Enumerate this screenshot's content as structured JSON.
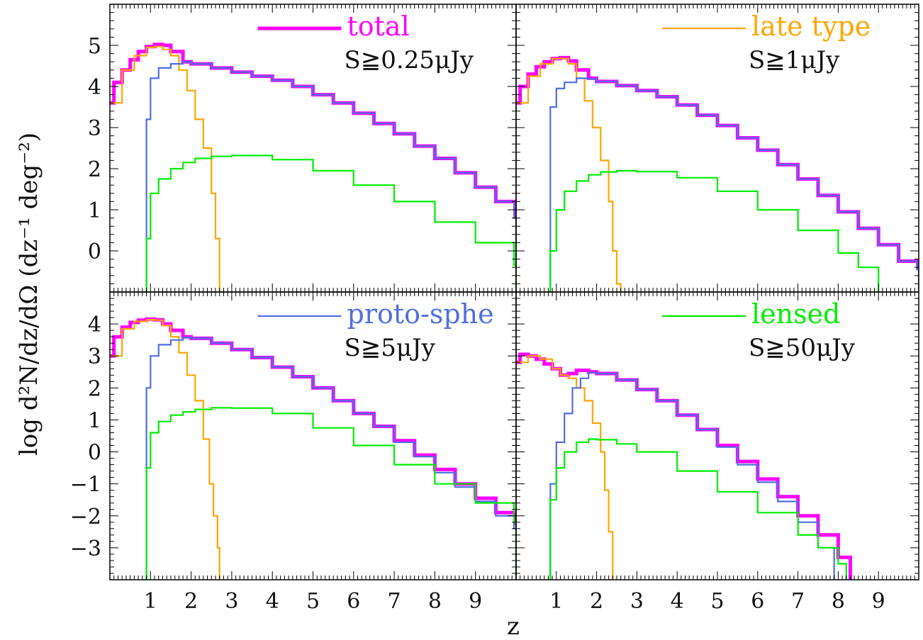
{
  "figure": {
    "ylabel": "log d²N/dz/dΩ (dz⁻¹ deg⁻²)",
    "xlabel": "z"
  },
  "colors": {
    "total": "#ff00ff",
    "late": "#ffa500",
    "proto": "#4f6fe0",
    "lensed": "#00ee00"
  },
  "chart_data": [
    {
      "type": "line",
      "panel": "top-left",
      "legend_label": "total",
      "legend_key": "total",
      "flux_cut": "S≧0.25μJy",
      "xlim": [
        0,
        10
      ],
      "ylim": [
        -1,
        6
      ],
      "yticks": [
        0,
        1,
        2,
        3,
        4,
        5
      ],
      "xticks": [
        1,
        2,
        3,
        4,
        5,
        6,
        7,
        8,
        9
      ],
      "series": [
        {
          "key": "total",
          "x": [
            0,
            0.1,
            0.3,
            0.5,
            0.7,
            0.9,
            1.1,
            1.3,
            1.5,
            1.8,
            2.0,
            2.5,
            3.0,
            3.5,
            4.0,
            4.5,
            5.0,
            5.5,
            6.0,
            6.5,
            7.0,
            7.5,
            8.0,
            8.5,
            9.0,
            9.5,
            10.0
          ],
          "y": [
            3.6,
            4.1,
            4.4,
            4.65,
            4.85,
            4.97,
            5.02,
            5.0,
            4.85,
            4.6,
            4.55,
            4.45,
            4.35,
            4.25,
            4.15,
            4.0,
            3.8,
            3.6,
            3.35,
            3.1,
            2.85,
            2.55,
            2.25,
            1.9,
            1.55,
            1.2,
            0.8
          ]
        },
        {
          "key": "late",
          "x": [
            0,
            0.3,
            0.6,
            0.9,
            1.1,
            1.3,
            1.5,
            1.7,
            1.9,
            2.1,
            2.3,
            2.5,
            2.6,
            2.7
          ],
          "y": [
            3.6,
            4.4,
            4.75,
            4.95,
            4.97,
            4.9,
            4.75,
            4.4,
            3.9,
            3.2,
            2.5,
            1.4,
            0.3,
            -1.0
          ]
        },
        {
          "key": "proto",
          "x": [
            0.85,
            0.9,
            1.0,
            1.2,
            1.5,
            1.8,
            2.0,
            2.5,
            3.0,
            3.5,
            4.0,
            4.5,
            5.0,
            5.5,
            6.0,
            6.5,
            7.0,
            7.5,
            8.0,
            8.5,
            9.0,
            9.5,
            9.95,
            10.0
          ],
          "y": [
            -1.0,
            3.2,
            4.2,
            4.45,
            4.55,
            4.6,
            4.55,
            4.45,
            4.35,
            4.25,
            4.15,
            4.0,
            3.8,
            3.6,
            3.35,
            3.1,
            2.85,
            2.55,
            2.25,
            1.9,
            1.55,
            1.2,
            0.8,
            -1.0
          ]
        },
        {
          "key": "lensed",
          "x": [
            0.85,
            0.9,
            1.0,
            1.2,
            1.5,
            1.8,
            2.1,
            2.5,
            3.0,
            4.0,
            5.0,
            6.0,
            7.0,
            8.0,
            9.0,
            9.95,
            10.0
          ],
          "y": [
            -1.0,
            0.3,
            1.4,
            1.75,
            2.0,
            2.15,
            2.25,
            2.3,
            2.32,
            2.22,
            1.95,
            1.6,
            1.2,
            0.7,
            0.2,
            -0.35,
            -1.0
          ]
        }
      ]
    },
    {
      "type": "line",
      "panel": "top-right",
      "legend_label": "late type",
      "legend_key": "late",
      "flux_cut": "S≧1μJy",
      "xlim": [
        0,
        10
      ],
      "ylim": [
        -1,
        6
      ],
      "yticks": [
        0,
        1,
        2,
        3,
        4,
        5
      ],
      "xticks": [
        1,
        2,
        3,
        4,
        5,
        6,
        7,
        8,
        9
      ],
      "series": [
        {
          "key": "total",
          "x": [
            0,
            0.1,
            0.3,
            0.5,
            0.7,
            0.9,
            1.1,
            1.3,
            1.5,
            1.8,
            2.0,
            2.5,
            3.0,
            3.5,
            4.0,
            4.5,
            5.0,
            5.5,
            6.0,
            6.5,
            7.0,
            7.5,
            8.0,
            8.5,
            9.0,
            9.5,
            10.0
          ],
          "y": [
            3.6,
            4.0,
            4.3,
            4.48,
            4.6,
            4.68,
            4.7,
            4.62,
            4.4,
            4.2,
            4.12,
            4.02,
            3.9,
            3.75,
            3.55,
            3.3,
            3.05,
            2.75,
            2.45,
            2.1,
            1.75,
            1.35,
            0.95,
            0.55,
            0.15,
            -0.25,
            -0.45
          ]
        },
        {
          "key": "late",
          "x": [
            0,
            0.3,
            0.6,
            0.9,
            1.1,
            1.3,
            1.5,
            1.7,
            1.9,
            2.1,
            2.3,
            2.4,
            2.5,
            2.6
          ],
          "y": [
            3.6,
            4.25,
            4.55,
            4.68,
            4.68,
            4.55,
            4.2,
            3.65,
            3.0,
            2.2,
            1.2,
            0.0,
            -0.8,
            -1.0
          ]
        },
        {
          "key": "proto",
          "x": [
            0.8,
            0.85,
            1.0,
            1.2,
            1.5,
            1.8,
            2.0,
            2.5,
            3.0,
            3.5,
            4.0,
            4.5,
            5.0,
            5.5,
            6.0,
            6.5,
            7.0,
            7.5,
            8.0,
            8.5,
            9.0,
            9.5,
            9.95,
            10.0
          ],
          "y": [
            -1.0,
            3.5,
            3.95,
            4.1,
            4.2,
            4.18,
            4.12,
            4.02,
            3.9,
            3.75,
            3.55,
            3.3,
            3.05,
            2.75,
            2.45,
            2.1,
            1.75,
            1.35,
            0.95,
            0.55,
            0.15,
            -0.25,
            -0.45,
            -1.0
          ]
        },
        {
          "key": "lensed",
          "x": [
            0.8,
            0.85,
            1.0,
            1.2,
            1.5,
            1.8,
            2.1,
            2.5,
            3.0,
            4.0,
            5.0,
            6.0,
            7.0,
            8.0,
            8.5,
            9.0
          ],
          "y": [
            -1.0,
            0.0,
            1.0,
            1.45,
            1.7,
            1.85,
            1.92,
            1.95,
            1.93,
            1.78,
            1.45,
            1.0,
            0.5,
            -0.05,
            -0.4,
            -1.0
          ]
        }
      ]
    },
    {
      "type": "line",
      "panel": "bottom-left",
      "legend_label": "proto-sphe",
      "legend_key": "proto",
      "flux_cut": "S≧5μJy",
      "xlim": [
        0,
        10
      ],
      "ylim": [
        -4,
        5
      ],
      "yticks": [
        -3,
        -2,
        -1,
        0,
        1,
        2,
        3,
        4
      ],
      "xticks": [
        1,
        2,
        3,
        4,
        5,
        6,
        7,
        8,
        9
      ],
      "series": [
        {
          "key": "total",
          "x": [
            0,
            0.1,
            0.3,
            0.5,
            0.7,
            0.9,
            1.1,
            1.3,
            1.5,
            1.8,
            2.0,
            2.5,
            3.0,
            3.5,
            4.0,
            4.5,
            5.0,
            5.5,
            6.0,
            6.5,
            7.0,
            7.5,
            8.0,
            8.5,
            9.0,
            9.5,
            10.0
          ],
          "y": [
            3.0,
            3.6,
            3.9,
            4.05,
            4.12,
            4.15,
            4.13,
            4.0,
            3.8,
            3.6,
            3.55,
            3.4,
            3.2,
            2.95,
            2.65,
            2.35,
            2.0,
            1.6,
            1.2,
            0.8,
            0.35,
            -0.1,
            -0.55,
            -1.0,
            -1.45,
            -1.9,
            -2.3
          ]
        },
        {
          "key": "late",
          "x": [
            0,
            0.3,
            0.6,
            0.9,
            1.1,
            1.3,
            1.5,
            1.7,
            1.9,
            2.1,
            2.3,
            2.45,
            2.55,
            2.65,
            2.7
          ],
          "y": [
            3.0,
            3.85,
            4.08,
            4.13,
            4.12,
            3.95,
            3.6,
            3.1,
            2.4,
            1.6,
            0.4,
            -1.0,
            -2.0,
            -3.0,
            -4.0
          ]
        },
        {
          "key": "proto",
          "x": [
            0.85,
            0.9,
            1.0,
            1.2,
            1.5,
            1.8,
            2.0,
            2.5,
            3.0,
            3.5,
            4.0,
            4.5,
            5.0,
            5.5,
            6.0,
            6.5,
            7.0,
            7.5,
            8.0,
            8.5,
            9.0,
            9.5,
            9.95,
            10.0
          ],
          "y": [
            -4.0,
            2.0,
            3.0,
            3.35,
            3.5,
            3.58,
            3.55,
            3.4,
            3.2,
            2.95,
            2.65,
            2.35,
            2.0,
            1.6,
            1.2,
            0.8,
            0.3,
            -0.15,
            -0.65,
            -1.1,
            -1.55,
            -2.0,
            -2.4,
            -4.0
          ]
        },
        {
          "key": "lensed",
          "x": [
            0.85,
            0.9,
            1.0,
            1.2,
            1.5,
            1.8,
            2.1,
            2.5,
            3.0,
            4.0,
            5.0,
            6.0,
            7.0,
            8.0,
            9.0,
            9.95,
            10.0
          ],
          "y": [
            -4.0,
            -0.5,
            0.6,
            0.95,
            1.15,
            1.25,
            1.33,
            1.38,
            1.37,
            1.2,
            0.75,
            0.2,
            -0.4,
            -1.0,
            -1.6,
            -2.2,
            -4.0
          ]
        }
      ]
    },
    {
      "type": "line",
      "panel": "bottom-right",
      "legend_label": "lensed",
      "legend_key": "lensed",
      "flux_cut": "S≧50μJy",
      "xlim": [
        0,
        10
      ],
      "ylim": [
        -4,
        5
      ],
      "yticks": [
        -3,
        -2,
        -1,
        0,
        1,
        2,
        3,
        4
      ],
      "xticks": [
        1,
        2,
        3,
        4,
        5,
        6,
        7,
        8,
        9
      ],
      "series": [
        {
          "key": "total",
          "x": [
            0,
            0.1,
            0.3,
            0.5,
            0.7,
            0.9,
            1.1,
            1.3,
            1.5,
            1.8,
            2.0,
            2.5,
            3.0,
            3.5,
            4.0,
            4.5,
            5.0,
            5.5,
            6.0,
            6.5,
            7.0,
            7.5,
            8.0,
            8.3
          ],
          "y": [
            2.8,
            3.05,
            3.0,
            2.9,
            2.75,
            2.6,
            2.4,
            2.45,
            2.55,
            2.5,
            2.45,
            2.25,
            1.95,
            1.6,
            1.15,
            0.7,
            0.2,
            -0.3,
            -0.85,
            -1.4,
            -2.0,
            -2.6,
            -3.3,
            -4.0
          ]
        },
        {
          "key": "late",
          "x": [
            0,
            0.3,
            0.6,
            0.9,
            1.1,
            1.3,
            1.5,
            1.7,
            1.9,
            2.1,
            2.2,
            2.3,
            2.4
          ],
          "y": [
            2.8,
            3.0,
            2.9,
            2.6,
            2.4,
            2.3,
            2.0,
            1.6,
            0.9,
            0.0,
            -1.2,
            -2.5,
            -4.0
          ]
        },
        {
          "key": "proto",
          "x": [
            0.8,
            0.85,
            1.0,
            1.2,
            1.4,
            1.6,
            1.8,
            2.0,
            2.5,
            3.0,
            3.5,
            4.0,
            4.5,
            5.0,
            5.5,
            6.0,
            6.5,
            7.0,
            7.5,
            7.9
          ],
          "y": [
            -4.0,
            -1.0,
            0.3,
            1.2,
            2.0,
            2.3,
            2.48,
            2.45,
            2.25,
            1.95,
            1.6,
            1.15,
            0.7,
            0.15,
            -0.4,
            -0.95,
            -1.55,
            -2.2,
            -3.0,
            -4.0
          ]
        },
        {
          "key": "lensed",
          "x": [
            0.8,
            0.85,
            1.0,
            1.2,
            1.5,
            1.8,
            2.0,
            2.5,
            3.0,
            4.0,
            5.0,
            6.0,
            7.0,
            7.5,
            8.0,
            8.2
          ],
          "y": [
            -4.0,
            -1.5,
            -0.5,
            0.0,
            0.3,
            0.4,
            0.38,
            0.25,
            0.0,
            -0.6,
            -1.25,
            -1.9,
            -2.6,
            -3.0,
            -3.5,
            -4.0
          ]
        }
      ]
    }
  ]
}
